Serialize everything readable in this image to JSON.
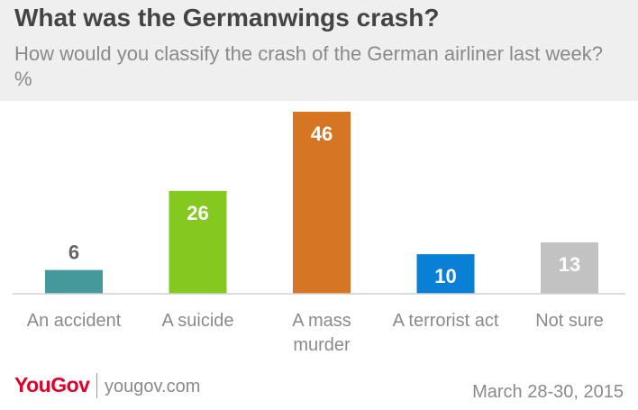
{
  "header": {
    "title": "What was the Germanwings crash?",
    "subtitle": "How would you classify the crash of the German airliner last week? %"
  },
  "chart_data": {
    "type": "bar",
    "title": "What was the Germanwings crash?",
    "subtitle": "How would you classify the crash of the German airliner last week? %",
    "categories": [
      "An accident",
      "A suicide",
      "A mass murder",
      "A terrorist act",
      "Not sure"
    ],
    "category_lines": [
      [
        "An accident"
      ],
      [
        "A suicide"
      ],
      [
        "A mass",
        "murder"
      ],
      [
        "A terrorist act"
      ],
      [
        "Not sure"
      ]
    ],
    "values": [
      6,
      26,
      46,
      10,
      13
    ],
    "colors": [
      "#45999a",
      "#85c820",
      "#d67625",
      "#0a7fd6",
      "#c2c2c2"
    ],
    "ylim": [
      0,
      46
    ],
    "grid": false,
    "legend": "none"
  },
  "footer": {
    "logo": "YouGov",
    "site": "yougov.com",
    "date": "March 28-30, 2015"
  }
}
